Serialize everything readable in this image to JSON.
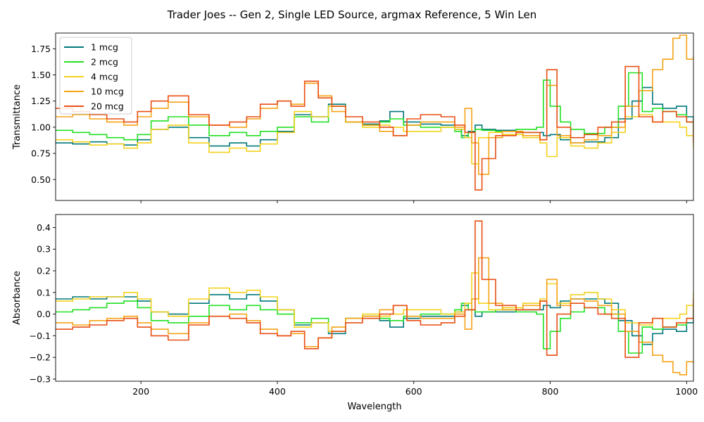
{
  "figure": {
    "title": "Trader Joes -- Gen 2, Single LED Source, argmax Reference, 5 Win Len"
  },
  "chart_data": [
    {
      "type": "line",
      "step": true,
      "ylabel": "Transmittance",
      "xlabel": "",
      "xlim": [
        75,
        1010
      ],
      "ylim": [
        0.3,
        1.9
      ],
      "yticks": [
        0.5,
        0.75,
        1.0,
        1.25,
        1.5,
        1.75
      ],
      "yticklabels": [
        "0.50",
        "0.75",
        "1.00",
        "1.25",
        "1.50",
        "1.75"
      ],
      "xticks": [
        200,
        400,
        600,
        800,
        1000
      ],
      "xticklabels": [],
      "legend": {
        "position": "top-left"
      },
      "series": [
        {
          "name": "1 mcg",
          "color": "#00787a",
          "x": [
            75,
            100,
            125,
            150,
            175,
            195,
            215,
            240,
            270,
            300,
            330,
            355,
            375,
            400,
            425,
            450,
            475,
            500,
            525,
            550,
            565,
            585,
            610,
            640,
            660,
            670,
            680,
            690,
            700,
            720,
            750,
            780,
            790,
            800,
            815,
            830,
            850,
            880,
            900,
            920,
            935,
            950,
            965,
            985,
            1000,
            1010
          ],
          "y": [
            0.85,
            0.84,
            0.86,
            0.84,
            0.83,
            0.88,
            0.98,
            1.0,
            0.9,
            0.82,
            0.85,
            0.82,
            0.88,
            0.96,
            1.12,
            1.1,
            1.22,
            1.05,
            1.03,
            1.06,
            1.15,
            1.05,
            1.03,
            1.02,
            0.98,
            0.92,
            0.96,
            1.02,
            0.98,
            0.97,
            0.95,
            0.95,
            0.92,
            0.93,
            0.88,
            0.85,
            0.86,
            0.9,
            1.08,
            1.25,
            1.38,
            1.22,
            1.18,
            1.2,
            1.1,
            0.95
          ]
        },
        {
          "name": "2 mcg",
          "color": "#22e022",
          "x": [
            75,
            100,
            125,
            150,
            175,
            195,
            215,
            240,
            270,
            300,
            330,
            355,
            375,
            400,
            425,
            450,
            475,
            500,
            525,
            550,
            565,
            585,
            610,
            640,
            660,
            670,
            680,
            690,
            700,
            720,
            750,
            780,
            790,
            800,
            815,
            830,
            850,
            880,
            900,
            915,
            935,
            950,
            965,
            985,
            1000,
            1010
          ],
          "y": [
            0.97,
            0.95,
            0.93,
            0.9,
            0.88,
            0.93,
            1.06,
            1.1,
            1.02,
            0.92,
            0.95,
            0.92,
            0.96,
            1.0,
            1.1,
            1.05,
            1.2,
            1.05,
            1.02,
            1.05,
            1.08,
            1.02,
            1.0,
            1.0,
            0.96,
            0.9,
            0.95,
            0.98,
            0.97,
            0.96,
            0.98,
            1.0,
            1.45,
            1.2,
            1.05,
            0.98,
            0.94,
            1.0,
            1.2,
            1.52,
            1.15,
            1.18,
            1.15,
            1.12,
            1.05,
            0.9
          ]
        },
        {
          "name": "4 mcg",
          "color": "#f4d21e",
          "x": [
            75,
            100,
            125,
            150,
            175,
            195,
            215,
            240,
            270,
            300,
            330,
            355,
            375,
            400,
            425,
            450,
            475,
            500,
            525,
            550,
            565,
            585,
            610,
            640,
            660,
            675,
            685,
            695,
            710,
            730,
            760,
            785,
            795,
            810,
            830,
            850,
            870,
            890,
            910,
            930,
            950,
            970,
            990,
            1000,
            1010
          ],
          "y": [
            0.88,
            0.86,
            0.83,
            0.84,
            0.8,
            0.85,
            0.98,
            1.02,
            0.85,
            0.76,
            0.8,
            0.77,
            0.84,
            0.95,
            1.15,
            1.1,
            1.2,
            1.05,
            1.0,
            1.02,
            1.0,
            0.96,
            0.96,
            1.0,
            0.98,
            0.9,
            0.65,
            0.9,
            0.95,
            0.93,
            0.9,
            0.85,
            0.72,
            0.9,
            0.82,
            0.8,
            0.85,
            0.95,
            1.1,
            1.12,
            1.05,
            1.05,
            1.0,
            0.92,
            0.8
          ]
        },
        {
          "name": "10 mcg",
          "color": "#f5a316",
          "x": [
            75,
            100,
            125,
            150,
            175,
            195,
            215,
            240,
            270,
            300,
            330,
            355,
            375,
            400,
            420,
            440,
            460,
            480,
            500,
            525,
            550,
            570,
            590,
            610,
            640,
            660,
            675,
            685,
            695,
            710,
            730,
            760,
            785,
            795,
            810,
            830,
            850,
            870,
            890,
            910,
            930,
            950,
            965,
            980,
            990,
            1000,
            1010
          ],
          "y": [
            1.1,
            1.12,
            1.08,
            1.05,
            1.02,
            1.1,
            1.18,
            1.24,
            1.1,
            1.02,
            1.0,
            1.08,
            1.18,
            1.25,
            1.22,
            1.42,
            1.3,
            1.15,
            1.05,
            1.02,
            0.96,
            0.92,
            1.02,
            1.05,
            1.05,
            1.0,
            1.18,
            0.85,
            0.55,
            0.9,
            0.96,
            0.92,
            0.88,
            1.4,
            0.92,
            0.85,
            0.88,
            0.92,
            1.0,
            1.2,
            1.35,
            1.55,
            1.65,
            1.85,
            1.88,
            1.65,
            1.68
          ]
        },
        {
          "name": "20 mcg",
          "color": "#e84f14",
          "x": [
            75,
            100,
            125,
            150,
            175,
            195,
            215,
            240,
            270,
            300,
            330,
            355,
            375,
            400,
            420,
            440,
            460,
            480,
            500,
            525,
            550,
            570,
            590,
            610,
            640,
            660,
            675,
            690,
            700,
            720,
            750,
            785,
            795,
            810,
            830,
            850,
            870,
            890,
            910,
            930,
            950,
            965,
            985,
            1000,
            1010
          ],
          "y": [
            1.18,
            1.15,
            1.12,
            1.08,
            1.05,
            1.15,
            1.25,
            1.3,
            1.12,
            1.02,
            1.05,
            1.1,
            1.22,
            1.25,
            1.2,
            1.44,
            1.28,
            1.2,
            1.1,
            1.05,
            1.0,
            0.92,
            1.08,
            1.12,
            1.1,
            1.02,
            0.95,
            0.4,
            0.7,
            0.92,
            0.95,
            0.88,
            1.55,
            1.0,
            0.9,
            0.93,
            1.0,
            1.05,
            1.58,
            1.1,
            1.05,
            1.15,
            1.1,
            1.05,
            0.85
          ]
        }
      ]
    },
    {
      "type": "line",
      "step": true,
      "ylabel": "Absorbance",
      "xlabel": "Wavelength",
      "xlim": [
        75,
        1010
      ],
      "ylim": [
        -0.31,
        0.46
      ],
      "yticks": [
        -0.3,
        -0.2,
        -0.1,
        0.0,
        0.1,
        0.2,
        0.3,
        0.4
      ],
      "yticklabels": [
        "−0.3",
        "−0.2",
        "−0.1",
        "0.0",
        "0.1",
        "0.2",
        "0.3",
        "0.4"
      ],
      "xticks": [
        200,
        400,
        600,
        800,
        1000
      ],
      "xticklabels": [
        "200",
        "400",
        "600",
        "800",
        "1000"
      ],
      "series": [
        {
          "name": "1 mcg",
          "color": "#00787a",
          "x": [
            75,
            100,
            125,
            150,
            175,
            195,
            215,
            240,
            270,
            300,
            330,
            355,
            375,
            400,
            425,
            450,
            475,
            500,
            525,
            550,
            565,
            585,
            610,
            640,
            660,
            670,
            680,
            690,
            700,
            720,
            750,
            780,
            790,
            800,
            815,
            830,
            850,
            880,
            900,
            920,
            935,
            950,
            965,
            985,
            1000,
            1010
          ],
          "y": [
            0.07,
            0.08,
            0.07,
            0.08,
            0.08,
            0.06,
            0.01,
            -0.0,
            0.05,
            0.09,
            0.07,
            0.09,
            0.06,
            0.02,
            -0.05,
            -0.04,
            -0.09,
            -0.02,
            -0.01,
            -0.03,
            -0.06,
            -0.02,
            -0.01,
            -0.01,
            0.01,
            0.04,
            0.02,
            -0.01,
            0.01,
            0.01,
            0.02,
            0.02,
            0.04,
            0.03,
            0.06,
            0.07,
            0.07,
            0.05,
            -0.03,
            -0.1,
            -0.14,
            -0.09,
            -0.07,
            -0.08,
            -0.04,
            0.02
          ]
        },
        {
          "name": "2 mcg",
          "color": "#22e022",
          "x": [
            75,
            100,
            125,
            150,
            175,
            195,
            215,
            240,
            270,
            300,
            330,
            355,
            375,
            400,
            425,
            450,
            475,
            500,
            525,
            550,
            565,
            585,
            610,
            640,
            660,
            670,
            680,
            690,
            700,
            720,
            750,
            780,
            790,
            800,
            815,
            830,
            850,
            880,
            900,
            915,
            935,
            950,
            965,
            985,
            1000,
            1010
          ],
          "y": [
            0.01,
            0.02,
            0.03,
            0.05,
            0.06,
            0.03,
            -0.03,
            -0.04,
            -0.01,
            0.04,
            0.02,
            0.04,
            0.02,
            -0.0,
            -0.04,
            -0.02,
            -0.08,
            -0.02,
            -0.01,
            -0.02,
            -0.03,
            -0.01,
            -0.0,
            -0.0,
            0.02,
            0.05,
            0.02,
            0.01,
            0.01,
            0.02,
            0.01,
            0.0,
            -0.16,
            -0.08,
            -0.02,
            0.01,
            0.03,
            -0.0,
            -0.08,
            -0.18,
            -0.06,
            -0.07,
            -0.06,
            -0.05,
            -0.02,
            0.05
          ]
        },
        {
          "name": "4 mcg",
          "color": "#f4d21e",
          "x": [
            75,
            100,
            125,
            150,
            175,
            195,
            215,
            240,
            270,
            300,
            330,
            355,
            375,
            400,
            425,
            450,
            475,
            500,
            525,
            550,
            565,
            585,
            610,
            640,
            660,
            675,
            685,
            695,
            710,
            730,
            760,
            785,
            795,
            810,
            830,
            850,
            870,
            890,
            910,
            930,
            950,
            970,
            990,
            1000,
            1010
          ],
          "y": [
            0.06,
            0.07,
            0.08,
            0.08,
            0.1,
            0.07,
            0.01,
            -0.01,
            0.07,
            0.12,
            0.1,
            0.11,
            0.08,
            0.02,
            -0.06,
            -0.04,
            -0.08,
            -0.02,
            0.0,
            -0.01,
            0.0,
            0.02,
            0.02,
            0.0,
            0.01,
            0.05,
            0.19,
            0.05,
            0.02,
            0.03,
            0.05,
            0.07,
            0.14,
            0.05,
            0.09,
            0.1,
            0.07,
            0.02,
            -0.04,
            -0.05,
            -0.02,
            -0.02,
            0.0,
            0.04,
            0.1
          ]
        },
        {
          "name": "10 mcg",
          "color": "#f5a316",
          "x": [
            75,
            100,
            125,
            150,
            175,
            195,
            215,
            240,
            270,
            300,
            330,
            355,
            375,
            400,
            420,
            440,
            460,
            480,
            500,
            525,
            550,
            570,
            590,
            610,
            640,
            660,
            675,
            685,
            695,
            710,
            730,
            760,
            785,
            795,
            810,
            830,
            850,
            870,
            890,
            910,
            930,
            950,
            965,
            980,
            990,
            1000,
            1010
          ],
          "y": [
            -0.04,
            -0.05,
            -0.03,
            -0.02,
            -0.01,
            -0.04,
            -0.07,
            -0.09,
            -0.04,
            -0.01,
            0.0,
            -0.03,
            -0.07,
            -0.1,
            -0.09,
            -0.15,
            -0.11,
            -0.06,
            -0.02,
            -0.01,
            0.02,
            0.04,
            -0.01,
            -0.02,
            -0.02,
            0.0,
            -0.07,
            0.07,
            0.26,
            0.05,
            0.02,
            0.04,
            0.06,
            0.16,
            0.04,
            0.07,
            0.06,
            0.04,
            0.0,
            -0.08,
            -0.13,
            -0.19,
            -0.22,
            -0.27,
            -0.28,
            -0.22,
            -0.23
          ]
        },
        {
          "name": "20 mcg",
          "color": "#e84f14",
          "x": [
            75,
            100,
            125,
            150,
            175,
            195,
            215,
            240,
            270,
            300,
            330,
            355,
            375,
            400,
            420,
            440,
            460,
            480,
            500,
            525,
            550,
            570,
            590,
            610,
            640,
            660,
            675,
            690,
            700,
            720,
            750,
            785,
            795,
            810,
            830,
            850,
            870,
            890,
            910,
            930,
            950,
            965,
            985,
            1000,
            1010
          ],
          "y": [
            -0.07,
            -0.06,
            -0.05,
            -0.03,
            -0.02,
            -0.06,
            -0.1,
            -0.12,
            -0.05,
            -0.01,
            -0.02,
            -0.04,
            -0.09,
            -0.1,
            -0.08,
            -0.16,
            -0.11,
            -0.08,
            -0.04,
            -0.02,
            0.0,
            0.04,
            -0.03,
            -0.05,
            -0.04,
            -0.01,
            0.02,
            0.43,
            0.16,
            0.04,
            0.02,
            0.06,
            -0.19,
            -0.0,
            0.05,
            0.03,
            0.0,
            -0.02,
            -0.2,
            -0.04,
            -0.02,
            -0.06,
            -0.04,
            -0.02,
            0.07
          ]
        }
      ]
    }
  ]
}
